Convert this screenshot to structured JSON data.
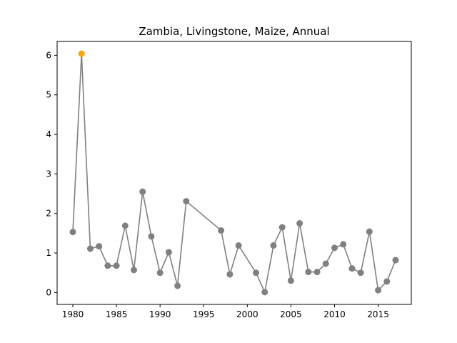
{
  "chart_data": {
    "type": "line",
    "title": "Zambia, Livingstone, Maize, Annual",
    "xlabel": "",
    "ylabel": "",
    "xlim": [
      1978.2,
      2018.8
    ],
    "ylim": [
      -0.3,
      6.35
    ],
    "x_ticks": [
      1980,
      1985,
      1990,
      1995,
      2000,
      2005,
      2010,
      2015
    ],
    "y_ticks": [
      0,
      1,
      2,
      3,
      4,
      5,
      6
    ],
    "grid": false,
    "line_color": "#808080",
    "marker_color": "#808080",
    "highlight_color": "#ffa500",
    "highlight_index": 1,
    "series": [
      {
        "x": [
          1980,
          1981,
          1982,
          1983,
          1984,
          1985,
          1986,
          1987,
          1988,
          1989,
          1990,
          1991,
          1992,
          1993,
          1997,
          1998,
          1999,
          2001,
          2002,
          2003,
          2004,
          2005,
          2006,
          2007,
          2008,
          2009,
          2010,
          2011,
          2012,
          2013,
          2014,
          2015,
          2016,
          2017
        ],
        "values": [
          1.53,
          6.04,
          1.11,
          1.17,
          0.68,
          0.68,
          1.69,
          0.57,
          2.55,
          1.42,
          0.5,
          1.02,
          0.17,
          2.31,
          1.57,
          0.46,
          1.19,
          0.5,
          0.01,
          1.19,
          1.65,
          0.3,
          1.75,
          0.52,
          0.52,
          0.73,
          1.13,
          1.22,
          0.61,
          0.5,
          1.54,
          0.06,
          0.28,
          0.82
        ]
      }
    ]
  }
}
